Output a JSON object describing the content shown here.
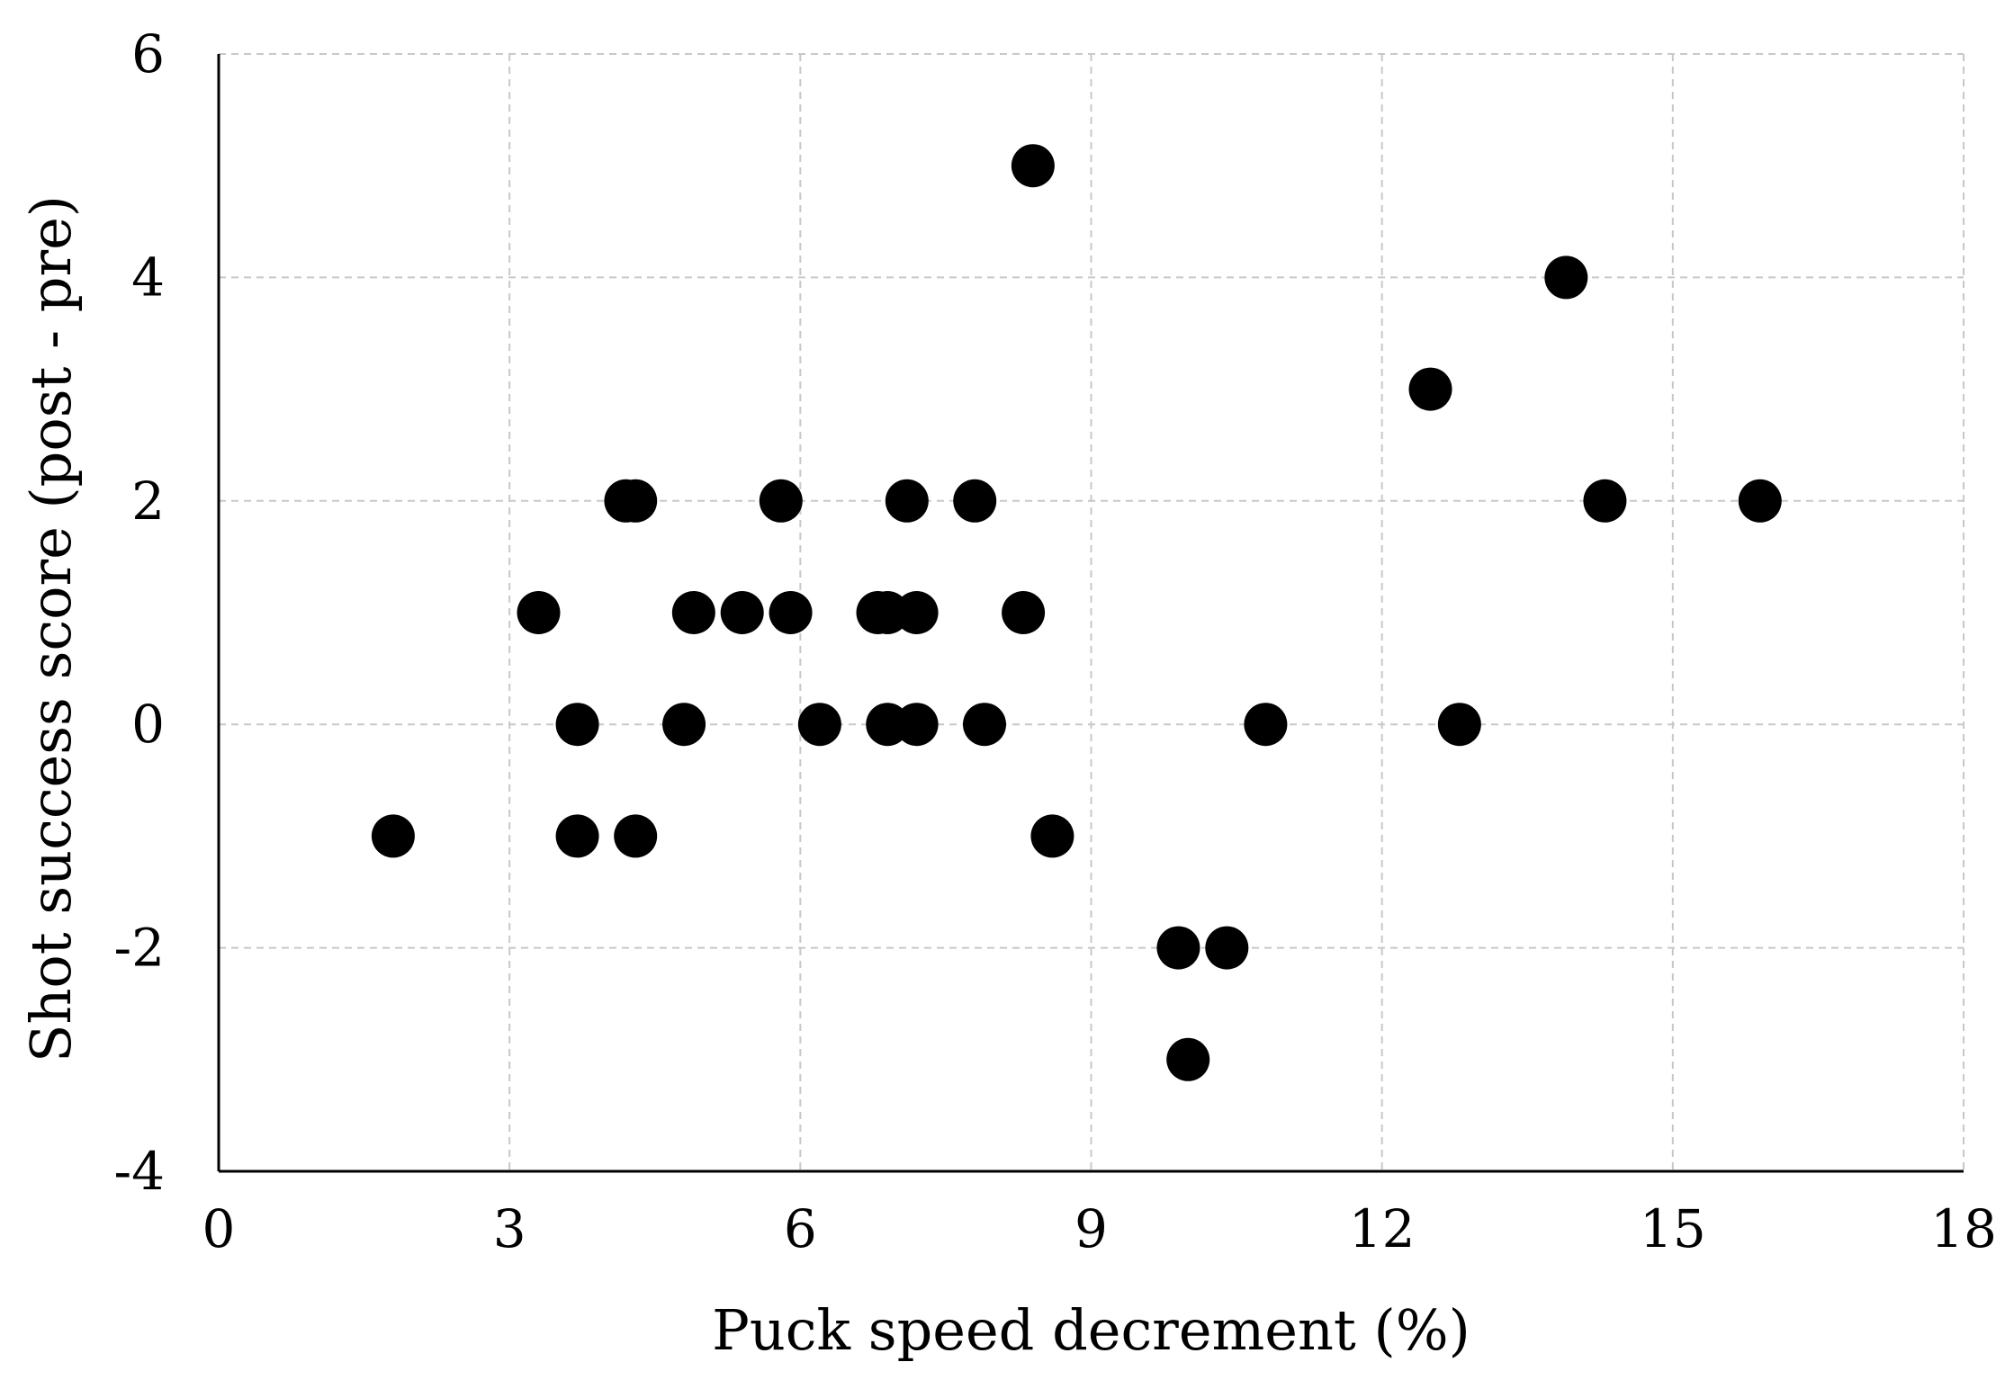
{
  "chart_data": {
    "type": "scatter",
    "title": "",
    "xlabel": "Puck speed decrement (%)",
    "ylabel": "Shot success score (post - pre)",
    "xlim": [
      0,
      18
    ],
    "ylim": [
      -4,
      6
    ],
    "xticks": [
      0,
      3,
      6,
      9,
      12,
      15,
      18
    ],
    "yticks": [
      -4,
      -2,
      0,
      2,
      4,
      6
    ],
    "xtick_labels": [
      "0",
      "3",
      "6",
      "9",
      "12",
      "15",
      "18"
    ],
    "ytick_labels": [
      "-4",
      "-2",
      "0",
      "2",
      "4",
      "6"
    ],
    "grid": true,
    "marker_color": "#000000",
    "points": [
      {
        "x": 1.8,
        "y": -1
      },
      {
        "x": 3.3,
        "y": 1
      },
      {
        "x": 3.7,
        "y": 0
      },
      {
        "x": 3.7,
        "y": -1
      },
      {
        "x": 4.2,
        "y": 2
      },
      {
        "x": 4.3,
        "y": 2
      },
      {
        "x": 4.3,
        "y": -1
      },
      {
        "x": 4.8,
        "y": 0
      },
      {
        "x": 4.9,
        "y": 1
      },
      {
        "x": 5.4,
        "y": 1
      },
      {
        "x": 5.8,
        "y": 2
      },
      {
        "x": 5.9,
        "y": 1
      },
      {
        "x": 6.2,
        "y": 0
      },
      {
        "x": 6.8,
        "y": 1
      },
      {
        "x": 6.9,
        "y": 1
      },
      {
        "x": 6.9,
        "y": 0
      },
      {
        "x": 7.1,
        "y": 2
      },
      {
        "x": 7.2,
        "y": 1
      },
      {
        "x": 7.2,
        "y": 0
      },
      {
        "x": 7.8,
        "y": 2
      },
      {
        "x": 7.9,
        "y": 0
      },
      {
        "x": 8.3,
        "y": 1
      },
      {
        "x": 8.4,
        "y": 5
      },
      {
        "x": 8.6,
        "y": -1
      },
      {
        "x": 9.9,
        "y": -2
      },
      {
        "x": 10.0,
        "y": -3
      },
      {
        "x": 10.4,
        "y": -2
      },
      {
        "x": 10.8,
        "y": 0
      },
      {
        "x": 12.5,
        "y": 3
      },
      {
        "x": 12.8,
        "y": 0
      },
      {
        "x": 13.9,
        "y": 4
      },
      {
        "x": 14.3,
        "y": 2
      },
      {
        "x": 15.9,
        "y": 2
      }
    ]
  }
}
